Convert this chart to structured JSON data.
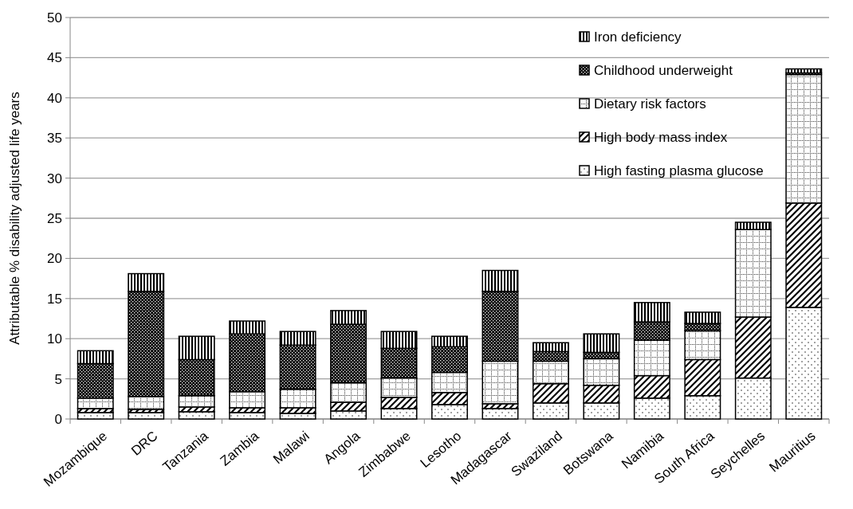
{
  "chart_data": {
    "type": "bar",
    "stacked": true,
    "ylabel": "Attributable % disability adjusted life years",
    "categories": [
      "Mozambique",
      "DRC",
      "Tanzania",
      "Zambia",
      "Malawi",
      "Angola",
      "Zimbabwe",
      "Lesotho",
      "Madagascar",
      "Swaziland",
      "Botswana",
      "Namibia",
      "South Africa",
      "Seychelles",
      "Mauritius"
    ],
    "series": [
      {
        "name": "High fasting plasma glucose",
        "color": "#000000",
        "values": [
          0.8,
          0.8,
          0.9,
          0.8,
          0.7,
          1.0,
          1.3,
          1.8,
          1.3,
          2.0,
          2.0,
          2.6,
          2.9,
          5.1,
          13.9
        ]
      },
      {
        "name": "High body mass index",
        "color": "#000000",
        "values": [
          0.5,
          0.4,
          0.6,
          0.6,
          0.7,
          1.1,
          1.4,
          1.5,
          0.6,
          2.4,
          2.2,
          2.8,
          4.5,
          7.6,
          13.0
        ]
      },
      {
        "name": "Dietary risk factors",
        "color": "#000000",
        "values": [
          1.3,
          1.6,
          1.4,
          2.0,
          2.3,
          2.4,
          2.4,
          2.5,
          5.3,
          2.8,
          3.3,
          4.4,
          3.6,
          10.9,
          16.0
        ]
      },
      {
        "name": "Childhood underweight",
        "color": "#000000",
        "values": [
          4.3,
          13.1,
          4.5,
          7.2,
          5.5,
          7.3,
          3.7,
          3.2,
          8.7,
          1.2,
          0.8,
          2.3,
          0.9,
          0,
          0.2
        ]
      },
      {
        "name": "Iron deficiency",
        "color": "#000000",
        "values": [
          1.6,
          2.2,
          2.9,
          1.6,
          1.7,
          1.7,
          2.1,
          1.3,
          2.6,
          1.1,
          2.3,
          2.4,
          1.4,
          0.9,
          0.5
        ]
      }
    ],
    "ylim": [
      0,
      50
    ],
    "yticks": [
      0,
      5,
      10,
      15,
      20,
      25,
      30,
      35,
      40,
      45,
      50
    ],
    "grid": "y",
    "legend": "top right"
  }
}
